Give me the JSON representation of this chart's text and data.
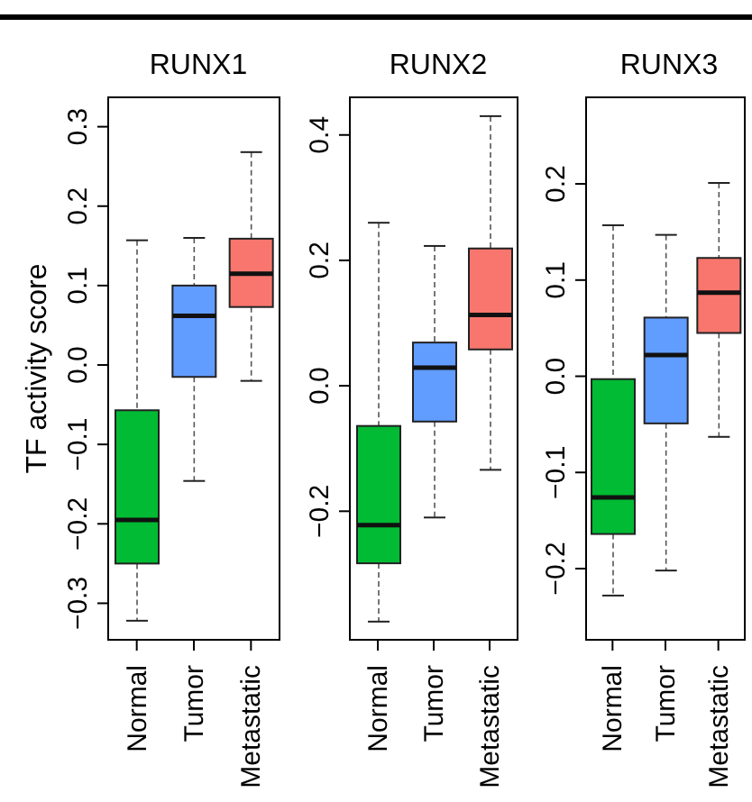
{
  "chart_data": [
    {
      "type": "box",
      "title": "RUNX1",
      "ylabel": "TF activity score",
      "categories": [
        "Normal",
        "Tumor",
        "Metastatic"
      ],
      "colors": [
        "#00bb33",
        "#619cff",
        "#f8766d"
      ],
      "boxes": [
        {
          "low": -0.322,
          "q1": -0.25,
          "median": -0.195,
          "q3": -0.057,
          "high": 0.157
        },
        {
          "low": -0.146,
          "q1": -0.015,
          "median": 0.062,
          "q3": 0.1,
          "high": 0.16
        },
        {
          "low": -0.02,
          "q1": 0.073,
          "median": 0.115,
          "q3": 0.159,
          "high": 0.268
        }
      ],
      "ylim": [
        -0.346,
        0.337
      ],
      "yticks": [
        {
          "value": -0.3,
          "label": "−0.3"
        },
        {
          "value": -0.2,
          "label": "−0.2"
        },
        {
          "value": -0.1,
          "label": "−0.1"
        },
        {
          "value": 0,
          "label": "0.0"
        },
        {
          "value": 0.1,
          "label": "0.1"
        },
        {
          "value": 0.2,
          "label": "0.2"
        },
        {
          "value": 0.3,
          "label": "0.3"
        }
      ]
    },
    {
      "type": "box",
      "title": "RUNX2",
      "categories": [
        "Normal",
        "Tumor",
        "Metastatic"
      ],
      "colors": [
        "#00bb33",
        "#619cff",
        "#f8766d"
      ],
      "boxes": [
        {
          "low": -0.376,
          "q1": -0.283,
          "median": -0.222,
          "q3": -0.064,
          "high": 0.26
        },
        {
          "low": -0.21,
          "q1": -0.057,
          "median": 0.029,
          "q3": 0.069,
          "high": 0.223
        },
        {
          "low": -0.134,
          "q1": 0.058,
          "median": 0.113,
          "q3": 0.219,
          "high": 0.43
        }
      ],
      "ylim": [
        -0.405,
        0.46
      ],
      "yticks": [
        {
          "value": -0.2,
          "label": "−0.2"
        },
        {
          "value": 0,
          "label": "0.0"
        },
        {
          "value": 0.2,
          "label": "0.2"
        },
        {
          "value": 0.4,
          "label": "0.4"
        }
      ]
    },
    {
      "type": "box",
      "title": "RUNX3",
      "categories": [
        "Normal",
        "Tumor",
        "Metastatic"
      ],
      "colors": [
        "#00bb33",
        "#619cff",
        "#f8766d"
      ],
      "boxes": [
        {
          "low": -0.228,
          "q1": -0.164,
          "median": -0.126,
          "q3": -0.003,
          "high": 0.157
        },
        {
          "low": -0.202,
          "q1": -0.049,
          "median": 0.022,
          "q3": 0.061,
          "high": 0.147
        },
        {
          "low": -0.063,
          "q1": 0.045,
          "median": 0.087,
          "q3": 0.123,
          "high": 0.201
        }
      ],
      "ylim": [
        -0.274,
        0.29
      ],
      "yticks": [
        {
          "value": -0.2,
          "label": "−0.2"
        },
        {
          "value": -0.1,
          "label": "−0.1"
        },
        {
          "value": 0,
          "label": "0.0"
        },
        {
          "value": 0.1,
          "label": "0.1"
        },
        {
          "value": 0.2,
          "label": "0.2"
        }
      ]
    }
  ]
}
